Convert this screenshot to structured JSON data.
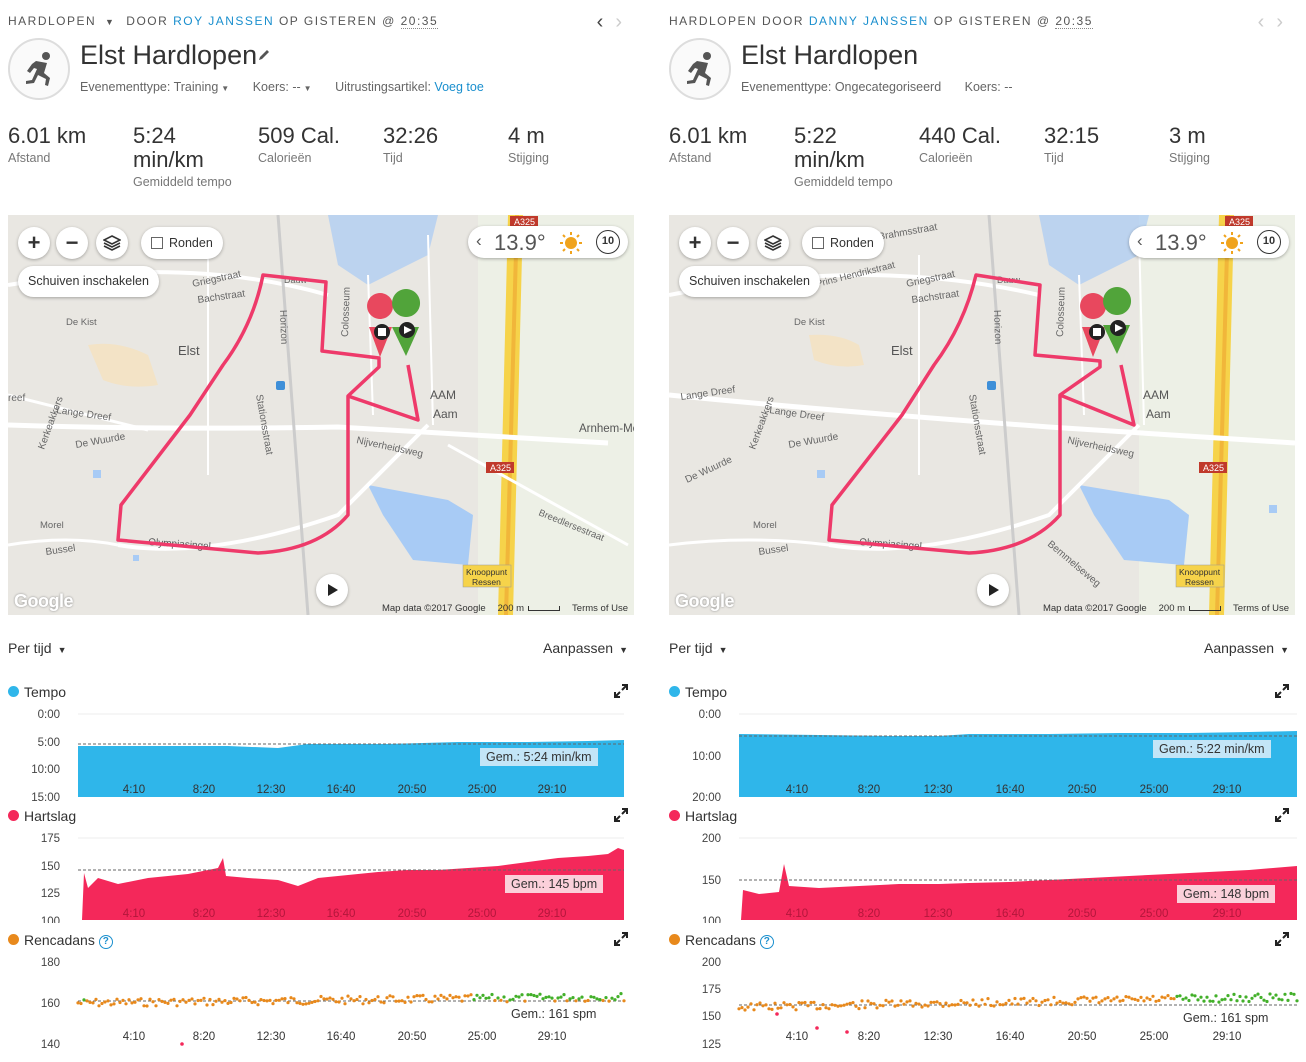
{
  "colors": {
    "tempo": "#2fb6ea",
    "heart": "#f4285a",
    "cadence": "#e8891c",
    "cadence_green": "#43b02a",
    "link": "#1a8fce",
    "route": "#ee3a6a"
  },
  "icons": {
    "activity": "running-person-icon",
    "edit": "pencil-icon",
    "prev": "chevron-left-icon",
    "next": "chevron-right-icon",
    "layers": "layers-icon",
    "weather": "sun-icon",
    "wind": "wind-speed-icon",
    "play": "play-icon",
    "expand": "expand-icon",
    "help": "help-icon"
  },
  "left": {
    "header": {
      "category": "HARDLOPEN",
      "by": "DOOR",
      "author": "ROY JANSSEN",
      "on": "OP GISTEREN",
      "at": "@",
      "time": "20:35"
    },
    "title": "Elst Hardlopen",
    "meta": {
      "event_label": "Evenementtype:",
      "event_value": "Training",
      "course_label": "Koers:",
      "course_value": "--",
      "gear_label": "Uitrustingsartikel:",
      "gear_link": "Voeg toe"
    },
    "stats": [
      {
        "value": "6.01 km",
        "label": "Afstand"
      },
      {
        "value": "5:24",
        "value2": "min/km",
        "label": "Gemiddeld tempo"
      },
      {
        "value": "509 Cal.",
        "label": "Calorieën"
      },
      {
        "value": "32:26",
        "label": "Tijd"
      },
      {
        "value": "4 m",
        "label": "Stijging"
      }
    ],
    "map": {
      "zoom_in": "+",
      "zoom_out": "−",
      "laps": "Ronden",
      "pan": "Schuiven inschakelen",
      "temperature": "13.9°",
      "wind": "10",
      "google": "Google",
      "map_data": "Map data ©2017 Google",
      "scale": "200 m",
      "terms": "Terms of Use",
      "labels": {
        "elst": "Elst",
        "aam1": "AAM",
        "aam2": "Aam",
        "arnhem": "Arnhem-Metropo",
        "a325": "A325",
        "knooppunt": "Knooppunt",
        "ressen": "Ressen",
        "griegstraat": "Griegstraat",
        "bachstraat": "Bachstraat",
        "dekist": "De Kist",
        "langedreef": "Lange Dreef",
        "dewuurde": "De Wuurde",
        "olympiasingel": "Olympiasingel",
        "nijverheidsweg": "Nijverheidsweg",
        "bussel": "Bussel",
        "morel": "Morel",
        "stationsstraat": "Stationsstraat",
        "colosseum": "Colosseum",
        "horizon": "Horizon",
        "breedlersestraat": "Breedlersestraat",
        "kerkeakkers": "Kerkeakkers",
        "reef": "reef",
        "daw": "Dauw"
      }
    },
    "chart_controls": {
      "per": "Per tijd",
      "customize": "Aanpassen"
    },
    "tempo": {
      "name": "Tempo",
      "avg": "Gem.: 5:24 min/km",
      "yticks": [
        "0:00",
        "5:00",
        "10:00",
        "15:00"
      ],
      "xticks": [
        "4:10",
        "8:20",
        "12:30",
        "16:40",
        "20:50",
        "25:00",
        "29:10"
      ]
    },
    "heart": {
      "name": "Hartslag",
      "avg": "Gem.: 145 bpm",
      "yticks": [
        "175",
        "150",
        "125",
        "100"
      ],
      "xticks": [
        "4:10",
        "8:20",
        "12:30",
        "16:40",
        "20:50",
        "25:00",
        "29:10"
      ]
    },
    "cadence": {
      "name": "Rencadans",
      "help": "?",
      "avg": "Gem.: 161 spm",
      "yticks": [
        "180",
        "160",
        "140"
      ],
      "xticks": [
        "4:10",
        "8:20",
        "12:30",
        "16:40",
        "20:50",
        "25:00",
        "29:10"
      ]
    }
  },
  "right": {
    "header": {
      "category": "HARDLOPEN",
      "by": "DOOR",
      "author": "DANNY JANSSEN",
      "on": "OP GISTEREN",
      "at": "@",
      "time": "20:35"
    },
    "title": "Elst Hardlopen",
    "meta": {
      "event_label": "Evenementtype:",
      "event_value": "Ongecategoriseerd",
      "course_label": "Koers:",
      "course_value": "--"
    },
    "stats": [
      {
        "value": "6.01 km",
        "label": "Afstand"
      },
      {
        "value": "5:22",
        "value2": "min/km",
        "label": "Gemiddeld tempo"
      },
      {
        "value": "440 Cal.",
        "label": "Calorieën"
      },
      {
        "value": "32:15",
        "label": "Tijd"
      },
      {
        "value": "3 m",
        "label": "Stijging"
      }
    ],
    "map": {
      "zoom_in": "+",
      "zoom_out": "−",
      "laps": "Ronden",
      "pan": "Schuiven inschakelen",
      "temperature": "13.9°",
      "wind": "10",
      "google": "Google",
      "map_data": "Map data ©2017 Google",
      "scale": "200 m",
      "terms": "Terms of Use",
      "labels": {
        "elst": "Elst",
        "aam1": "AAM",
        "aam2": "Aam",
        "a325": "A325",
        "knooppunt": "Knooppunt",
        "ressen": "Ressen",
        "griegstraat": "Griegstraat",
        "bachstraat": "Bachstraat",
        "dekist": "De Kist",
        "langedreef": "Lange Dreef",
        "langedreef2": "Lange Dreef",
        "dewuurde": "De Wuurde",
        "olympiasingel": "Olympiasingel",
        "nijverheidsweg": "Nijverheidsweg",
        "bussel": "Bussel",
        "morel": "Morel",
        "stationsstraat": "Stationsstraat",
        "colosseum": "Colosseum",
        "horizon": "Horizon",
        "brahmsstraat": "Brahmsstraat",
        "prins": "Prins Hendrikstraat",
        "kerkeakkers": "Kerkeakkers",
        "bemmelseweg": "Bemmelseweg",
        "dewuurde2": "De Wuurde",
        "daw": "Dauw"
      }
    },
    "chart_controls": {
      "per": "Per tijd",
      "customize": "Aanpassen"
    },
    "tempo": {
      "name": "Tempo",
      "avg": "Gem.: 5:22 min/km",
      "yticks": [
        "0:00",
        "10:00",
        "20:00"
      ],
      "xticks": [
        "4:10",
        "8:20",
        "12:30",
        "16:40",
        "20:50",
        "25:00",
        "29:10"
      ]
    },
    "heart": {
      "name": "Hartslag",
      "avg": "Gem.: 148 bpm",
      "yticks": [
        "200",
        "150",
        "100"
      ],
      "xticks": [
        "4:10",
        "8:20",
        "12:30",
        "16:40",
        "20:50",
        "25:00",
        "29:10"
      ]
    },
    "cadence": {
      "name": "Rencadans",
      "help": "?",
      "avg": "Gem.: 161 spm",
      "yticks": [
        "200",
        "175",
        "150",
        "125"
      ],
      "xticks": [
        "4:10",
        "8:20",
        "12:30",
        "16:40",
        "20:50",
        "25:00",
        "29:10"
      ]
    }
  }
}
